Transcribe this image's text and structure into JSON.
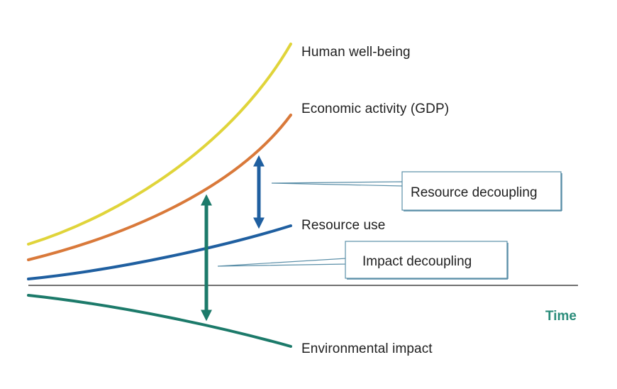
{
  "curves": {
    "wellbeing": {
      "label": "Human well-being",
      "color": "#e0d43a"
    },
    "gdp": {
      "label": "Economic activity (GDP)",
      "color": "#d9793a"
    },
    "resource": {
      "label": "Resource use",
      "color": "#1f5fa0"
    },
    "impact": {
      "label": "Environmental impact",
      "color": "#1c7a6a"
    }
  },
  "callouts": {
    "resource_decoupling": {
      "label": "Resource decoupling",
      "color": "#1f5fa0"
    },
    "impact_decoupling": {
      "label": "Impact decoupling",
      "color": "#1c7a6a"
    }
  },
  "axis": {
    "time_label": "Time",
    "time_color": "#2a8c7a"
  },
  "box_border_color": "#5b8fa8"
}
